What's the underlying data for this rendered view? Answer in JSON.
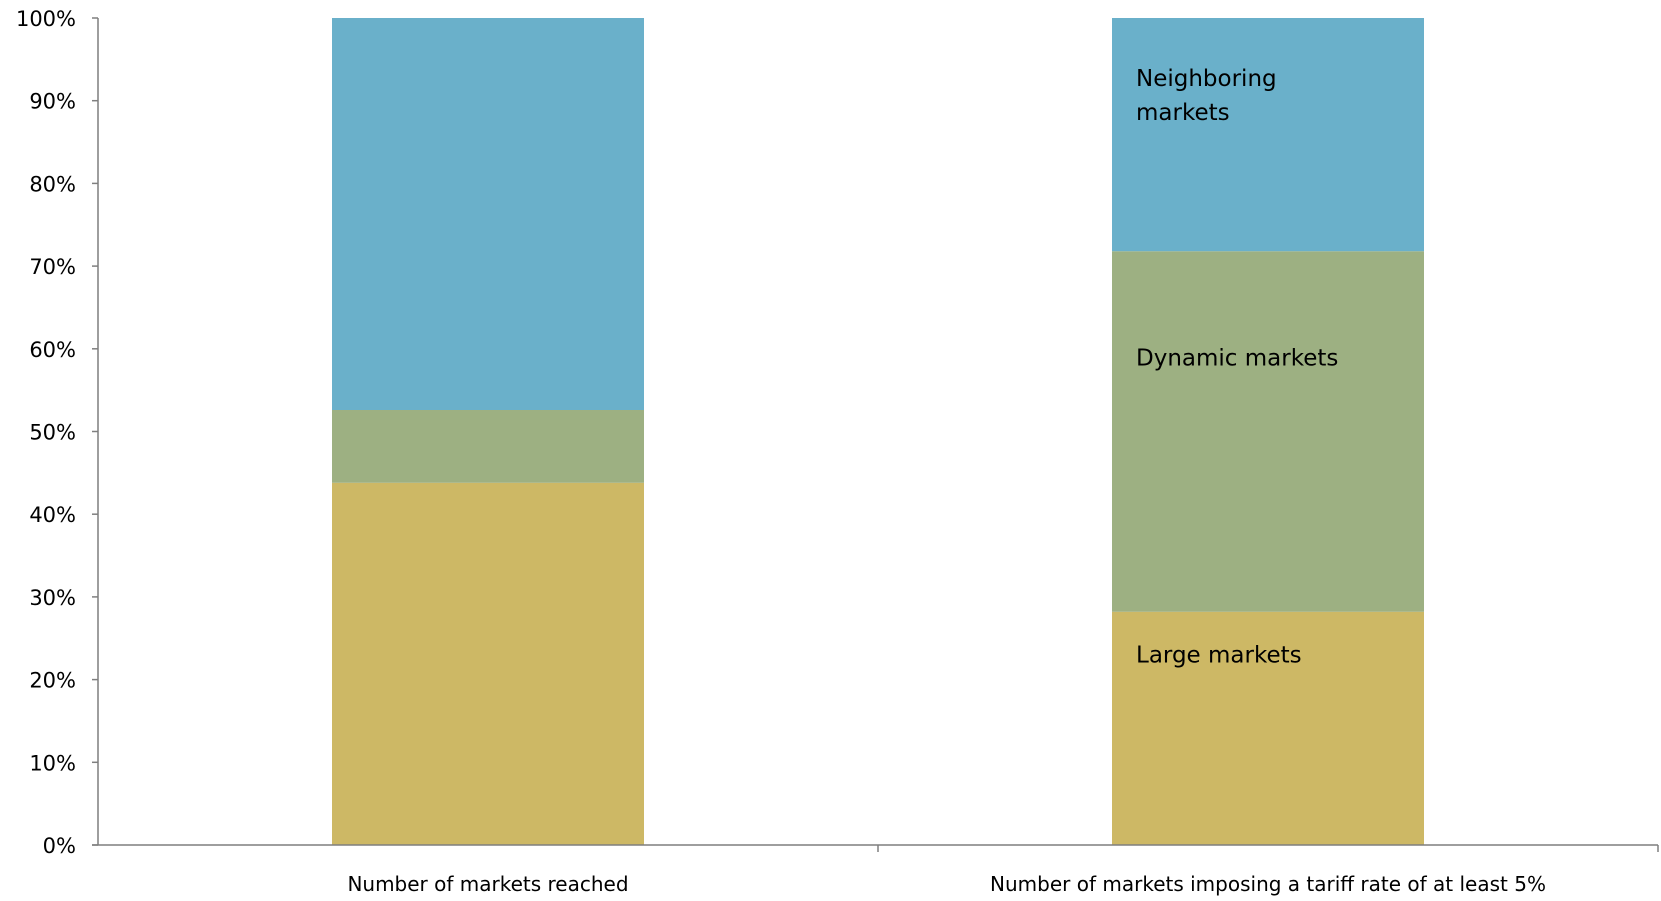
{
  "chart_data": {
    "type": "bar",
    "stacked": true,
    "categories": [
      "Number of markets reached",
      "Number of markets imposing a tariff rate of at least 5%"
    ],
    "series": [
      {
        "name": "Large markets",
        "color": "#CDB865",
        "values": [
          43.8,
          28.2
        ]
      },
      {
        "name": "Dynamic markets",
        "color": "#9DB082",
        "values": [
          8.8,
          43.6
        ]
      },
      {
        "name": "Neighboring markets",
        "color": "#6AB0CA",
        "values": [
          47.4,
          28.2
        ]
      }
    ],
    "segment_labels": [
      {
        "series": "Neighboring markets",
        "category_index": 1,
        "lines": [
          "Neighboring",
          "markets"
        ]
      },
      {
        "series": "Dynamic markets",
        "category_index": 1,
        "lines": [
          "Dynamic markets"
        ]
      },
      {
        "series": "Large markets",
        "category_index": 1,
        "lines": [
          "Large markets"
        ]
      }
    ],
    "ylim": [
      0,
      100
    ],
    "yticks": [
      0,
      10,
      20,
      30,
      40,
      50,
      60,
      70,
      80,
      90,
      100
    ],
    "ytick_suffix": "%",
    "title": "",
    "xlabel": "",
    "ylabel": "",
    "grid": false,
    "legend": "none"
  }
}
